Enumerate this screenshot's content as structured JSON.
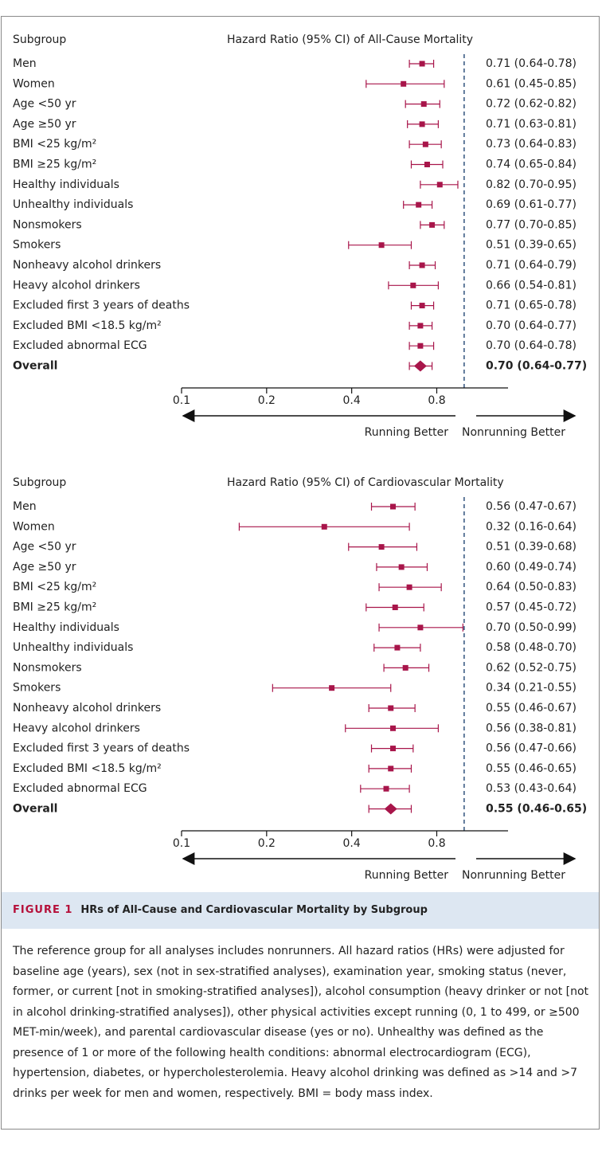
{
  "chart_data": [
    {
      "type": "forest",
      "subgroup_header": "Subgroup",
      "title": "Hazard Ratio (95%  CI) of All-Cause Mortality",
      "categories": [
        "Men",
        "Women",
        "Age <50 yr",
        "Age ≥50 yr",
        "BMI <25 kg/m²",
        "BMI ≥25 kg/m²",
        "Healthy individuals",
        "Unhealthy individuals",
        "Nonsmokers",
        "Smokers",
        "Nonheavy alcohol drinkers",
        "Heavy alcohol drinkers",
        "Excluded first 3 years of deaths",
        "Excluded BMI <18.5 kg/m²",
        "Excluded abnormal ECG"
      ],
      "values": [
        0.71,
        0.61,
        0.72,
        0.71,
        0.73,
        0.74,
        0.82,
        0.69,
        0.77,
        0.51,
        0.71,
        0.66,
        0.71,
        0.7,
        0.7
      ],
      "ci_lower": [
        0.64,
        0.45,
        0.62,
        0.63,
        0.64,
        0.65,
        0.7,
        0.61,
        0.7,
        0.39,
        0.64,
        0.54,
        0.65,
        0.64,
        0.64
      ],
      "ci_upper": [
        0.78,
        0.85,
        0.82,
        0.81,
        0.83,
        0.84,
        0.95,
        0.77,
        0.85,
        0.65,
        0.79,
        0.81,
        0.78,
        0.77,
        0.78
      ],
      "value_labels": [
        "0.71 (0.64-0.78)",
        "0.61 (0.45-0.85)",
        "0.72 (0.62-0.82)",
        "0.71 (0.63-0.81)",
        "0.73 (0.64-0.83)",
        "0.74 (0.65-0.84)",
        "0.82 (0.70-0.95)",
        "0.69 (0.61-0.77)",
        "0.77 (0.70-0.85)",
        "0.51 (0.39-0.65)",
        "0.71 (0.64-0.79)",
        "0.66 (0.54-0.81)",
        "0.71 (0.65-0.78)",
        "0.70 (0.64-0.77)",
        "0.70 (0.64-0.78)"
      ],
      "overall": {
        "label": "Overall",
        "value": 0.7,
        "ci_lower": 0.64,
        "ci_upper": 0.77,
        "value_label": "0.70 (0.64-0.77)"
      },
      "color": "#a8154a",
      "xscale": "log",
      "xlim": [
        0.1,
        1.43
      ],
      "xticks": [
        0.1,
        0.2,
        0.4,
        0.8
      ],
      "ref_line": 1,
      "left_label": "Running Better",
      "right_label": "Nonrunning Better"
    },
    {
      "type": "forest",
      "subgroup_header": "Subgroup",
      "title": "Hazard Ratio (95%  CI) of Cardiovascular Mortality",
      "categories": [
        "Men",
        "Women",
        "Age <50 yr",
        "Age ≥50 yr",
        "BMI <25 kg/m²",
        "BMI ≥25 kg/m²",
        "Healthy individuals",
        "Unhealthy individuals",
        "Nonsmokers",
        "Smokers",
        "Nonheavy alcohol drinkers",
        "Heavy alcohol drinkers",
        "Excluded first 3 years of deaths",
        "Excluded BMI <18.5 kg/m²",
        "Excluded abnormal ECG"
      ],
      "values": [
        0.56,
        0.32,
        0.51,
        0.6,
        0.64,
        0.57,
        0.7,
        0.58,
        0.62,
        0.34,
        0.55,
        0.56,
        0.56,
        0.55,
        0.53
      ],
      "ci_lower": [
        0.47,
        0.16,
        0.39,
        0.49,
        0.5,
        0.45,
        0.5,
        0.48,
        0.52,
        0.21,
        0.46,
        0.38,
        0.47,
        0.46,
        0.43
      ],
      "ci_upper": [
        0.67,
        0.64,
        0.68,
        0.74,
        0.83,
        0.72,
        0.99,
        0.7,
        0.75,
        0.55,
        0.67,
        0.81,
        0.66,
        0.65,
        0.64
      ],
      "value_labels": [
        "0.56 (0.47-0.67)",
        "0.32 (0.16-0.64)",
        "0.51 (0.39-0.68)",
        "0.60 (0.49-0.74)",
        "0.64 (0.50-0.83)",
        "0.57 (0.45-0.72)",
        "0.70 (0.50-0.99)",
        "0.58 (0.48-0.70)",
        "0.62 (0.52-0.75)",
        "0.34 (0.21-0.55)",
        "0.55 (0.46-0.67)",
        "0.56 (0.38-0.81)",
        "0.56 (0.47-0.66)",
        "0.55 (0.46-0.65)",
        "0.53 (0.43-0.64)"
      ],
      "overall": {
        "label": "Overall",
        "value": 0.55,
        "ci_lower": 0.46,
        "ci_upper": 0.65,
        "value_label": "0.55 (0.46-0.65)"
      },
      "color": "#a8154a",
      "xscale": "log",
      "xlim": [
        0.1,
        1.43
      ],
      "xticks": [
        0.1,
        0.2,
        0.4,
        0.8
      ],
      "ref_line": 1,
      "left_label": "Running Better",
      "right_label": "Nonrunning Better"
    }
  ],
  "caption": {
    "label": "FIGURE 1",
    "title": "HRs of All-Cause and Cardiovascular Mortality by Subgroup",
    "text": "The reference group for all analyses includes nonrunners. All hazard ratios (HRs) were adjusted for baseline age (years), sex (not in sex-stratified analyses), examination year, smoking status (never, former, or current [not in smoking-stratified analyses]), alcohol consumption (heavy drinker or not [not in alcohol drinking-stratified analyses]), other physical activities except running (0, 1 to 499, or ≥500 MET-min/week), and parental cardiovascular disease (yes or no). Unhealthy was defined as the presence of 1 or more of the following health conditions: abnormal electrocardiogram (ECG), hypertension, diabetes, or hypercholesterolemia. Heavy alcohol drinking was defined as >14 and >7 drinks per week for men and women, respectively. BMI = body mass index."
  }
}
